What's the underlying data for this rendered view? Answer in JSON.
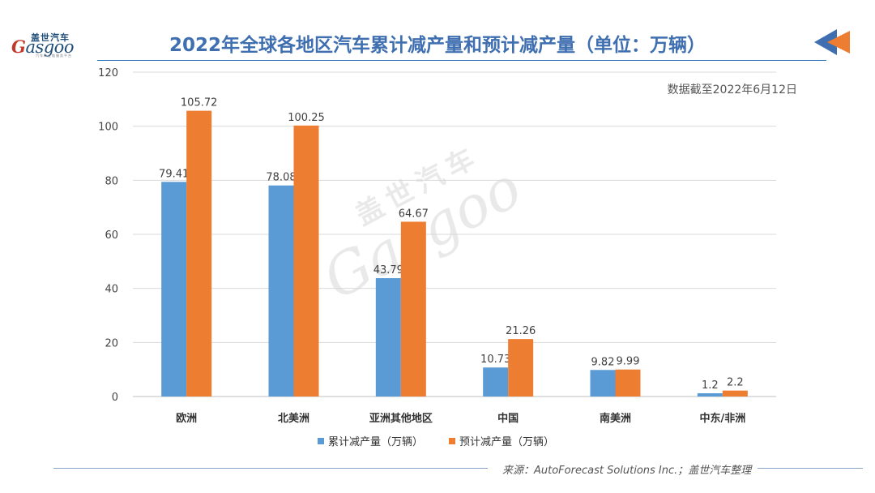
{
  "logo": {
    "top": "盖世汽车",
    "main": "Gasgoo",
    "sub": "汽车产业链服务平台"
  },
  "title": "2022年全球各地区汽车累计减产量和预计减产量（单位：万辆）",
  "note": "数据截至2022年6月12日",
  "source": "来源：AutoForecast Solutions Inc.；盖世汽车整理",
  "watermark": {
    "cn": "盖世汽车",
    "en": "Gasgoo"
  },
  "colors": {
    "series1": "#5b9bd5",
    "series2": "#ed7d31",
    "title": "#3f6fb0"
  },
  "chart_data": {
    "type": "bar",
    "title": "2022年全球各地区汽车累计减产量和预计减产量（单位：万辆）",
    "categories": [
      "欧洲",
      "北美洲",
      "亚洲其他地区",
      "中国",
      "南美洲",
      "中东/非洲"
    ],
    "series": [
      {
        "name": "累计减产量（万辆）",
        "values": [
          79.41,
          78.08,
          43.79,
          10.73,
          9.82,
          1.2
        ],
        "labels": [
          "79.41",
          "78.08",
          "43.79",
          "10.73",
          "9.82",
          "1.2"
        ]
      },
      {
        "name": "预计减产量（万辆）",
        "values": [
          105.72,
          100.25,
          64.67,
          21.26,
          9.99,
          2.2
        ],
        "labels": [
          "105.72",
          "100.25",
          "64.67",
          "21.26",
          "9.99",
          "2.2"
        ]
      }
    ],
    "ylim": [
      0,
      120
    ],
    "yticks": [
      0,
      20,
      40,
      60,
      80,
      100,
      120
    ],
    "grid": true,
    "legend": "bottom"
  }
}
